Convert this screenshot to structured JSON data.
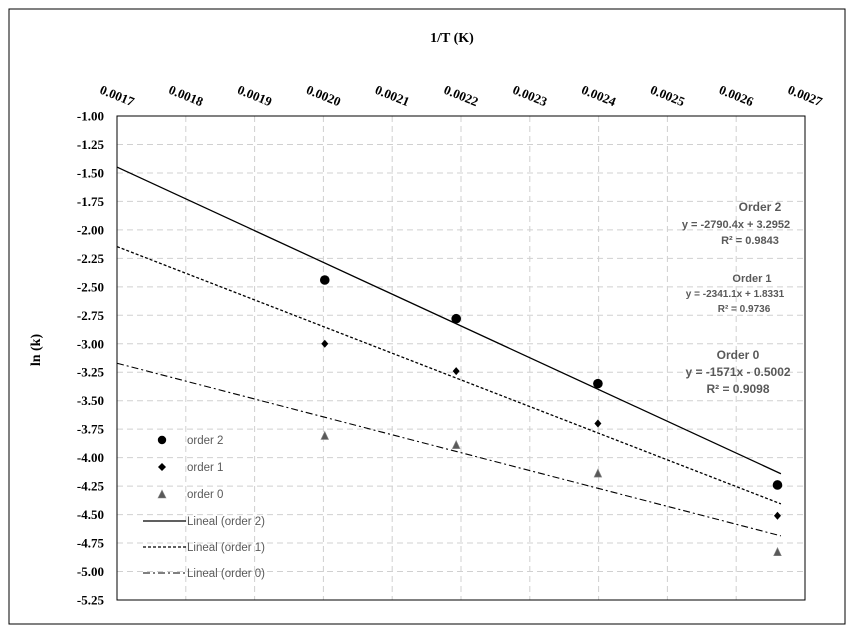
{
  "chart_data": {
    "type": "scatter",
    "xlabel": "1/T (K)",
    "ylabel": "ln (k)",
    "xlim": [
      0.0017,
      0.0027
    ],
    "ylim": [
      -5.25,
      -1.0
    ],
    "x_ticks": [
      "0.0017",
      "0.0018",
      "0.0019",
      "0.0020",
      "0.0021",
      "0.0022",
      "0.0023",
      "0.0024",
      "0.0025",
      "0.0026",
      "0.0027"
    ],
    "y_ticks": [
      "-1.00",
      "-1.25",
      "-1.50",
      "-1.75",
      "-2.00",
      "-2.25",
      "-2.50",
      "-2.75",
      "-3.00",
      "-3.25",
      "-3.50",
      "-3.75",
      "-4.00",
      "-4.25",
      "-4.50",
      "-4.75",
      "-5.00",
      "-5.25"
    ],
    "x_axis_position": "top",
    "grid": true,
    "legend_position": "bottom-left",
    "series": [
      {
        "name": "order 2",
        "marker": "circle",
        "color": "#000000",
        "points": [
          [
            0.002002,
            -2.44
          ],
          [
            0.002193,
            -2.78
          ],
          [
            0.002399,
            -3.35
          ],
          [
            0.00266,
            -4.24
          ]
        ]
      },
      {
        "name": "order 1",
        "marker": "diamond",
        "color": "#000000",
        "points": [
          [
            0.002002,
            -3.0
          ],
          [
            0.002193,
            -3.24
          ],
          [
            0.002399,
            -3.7
          ],
          [
            0.00266,
            -4.51
          ]
        ]
      },
      {
        "name": "order 0",
        "marker": "triangle",
        "color": "#595959",
        "points": [
          [
            0.002002,
            -3.81
          ],
          [
            0.002193,
            -3.89
          ],
          [
            0.002399,
            -4.14
          ],
          [
            0.00266,
            -4.83
          ]
        ]
      }
    ],
    "trendlines": [
      {
        "name": "Lineal (order 2)",
        "style": "solid",
        "slope": -2790.4,
        "intercept": 3.2952,
        "title": "Order 2",
        "equation": "y = -2790.4x + 3.2952",
        "r2": "R² = 0.9843"
      },
      {
        "name": "Lineal (order 1)",
        "style": "dashed",
        "slope": -2341.1,
        "intercept": 1.8331,
        "title": "Order 1",
        "equation": "y = -2341.1x + 1.8331",
        "r2": "R² = 0.9736"
      },
      {
        "name": "Lineal (order 0)",
        "style": "dashdot",
        "slope": -1571,
        "intercept": -0.5002,
        "title": "Order 0",
        "equation": "y = -1571x - 0.5002",
        "r2": "R² = 0.9098"
      }
    ]
  }
}
